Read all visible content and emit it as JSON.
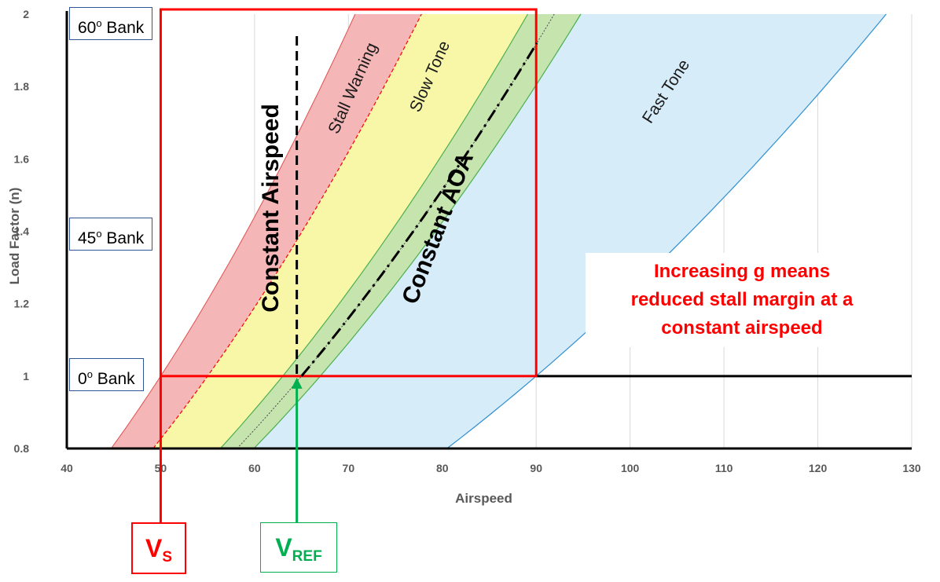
{
  "chart_data": {
    "type": "area",
    "xlabel": "Airspeed",
    "ylabel": "Load Factor (n)",
    "xlim": [
      40,
      130
    ],
    "ylim": [
      0.8,
      2
    ],
    "x_ticks": [
      "40",
      "50",
      "60",
      "70",
      "80",
      "90",
      "100",
      "110",
      "120",
      "130"
    ],
    "y_ticks": [
      "0.8",
      "1",
      "1.2",
      "1.4",
      "1.6",
      "1.8",
      "2"
    ],
    "grid": "vertical",
    "regions": [
      {
        "label": "Stall Warning",
        "color": "#f4b6b6",
        "left_stall_speed": 50,
        "right_stall_speed": 55
      },
      {
        "label": "Slow Tone",
        "color": "#f8f7a8",
        "left_stall_speed": 55,
        "right_stall_speed": 63
      },
      {
        "label": "",
        "color": "#c6e4ae",
        "left_stall_speed": 63,
        "right_stall_speed": 67
      },
      {
        "label": "Fast Tone",
        "color": "#d6ecf8",
        "left_stall_speed": 67,
        "right_stall_speed": 90
      }
    ],
    "vertical_line": {
      "label": "Constant Airspeed",
      "x": 64.5
    },
    "aoa_line": {
      "label": "Constant AOA",
      "stall_speed": 65
    },
    "bank_lines": [
      {
        "label": "60o Bank",
        "y": 2
      },
      {
        "label": "45o Bank",
        "y": 1.414
      },
      {
        "label": "0o Bank",
        "y": 1
      }
    ],
    "annotation": "Increasing g means reduced stall margin at a constant airspeed",
    "markers": [
      {
        "label": "V",
        "sub": "S",
        "x": 50,
        "color": "#ff0000"
      },
      {
        "label": "V",
        "sub": "REF",
        "x": 64.5,
        "color": "#00b050"
      }
    ]
  },
  "bank_labels": {
    "b60": {
      "num": "60",
      "sup": "o",
      "text": " Bank"
    },
    "b45": {
      "num": "45",
      "sup": "o",
      "text": " Bank"
    },
    "b0": {
      "num": "0",
      "sup": "o",
      "text": " Bank"
    }
  },
  "note": {
    "line1": "Increasing g means",
    "line2": "reduced stall margin at a",
    "line3": "constant airspeed"
  },
  "vs": {
    "main": "V",
    "sub": "S"
  },
  "vref": {
    "main": "V",
    "sub": "REF"
  }
}
